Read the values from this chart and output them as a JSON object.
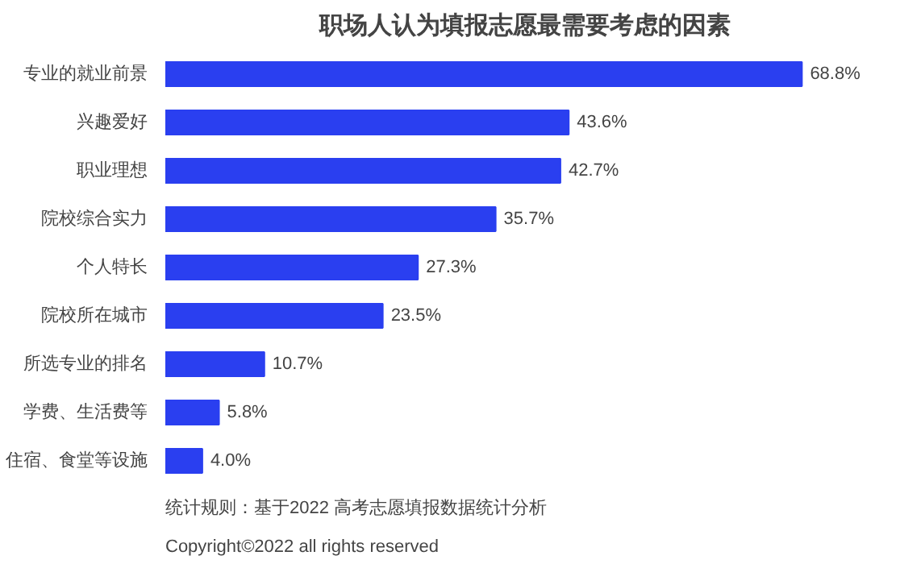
{
  "chart_data": {
    "type": "bar",
    "orientation": "horizontal",
    "title": "职场人认为填报志愿最需要考虑的因素",
    "categories": [
      "专业的就业前景",
      "兴趣爱好",
      "职业理想",
      "院校综合实力",
      "个人特长",
      "院校所在城市",
      "所选专业的排名",
      "学费、生活费等",
      "住宿、食堂等设施"
    ],
    "values": [
      68.8,
      43.6,
      42.7,
      35.7,
      27.3,
      23.5,
      10.7,
      5.8,
      4.0
    ],
    "value_labels": [
      "68.8%",
      "43.6%",
      "42.7%",
      "35.7%",
      "27.3%",
      "23.5%",
      "10.7%",
      "5.8%",
      "4.0%"
    ],
    "color": "#2a3ff0",
    "annotations": [
      "统计规则：基于2022 高考志愿填报数据统计分析",
      "Copyright©2022 all rights reserved"
    ]
  }
}
